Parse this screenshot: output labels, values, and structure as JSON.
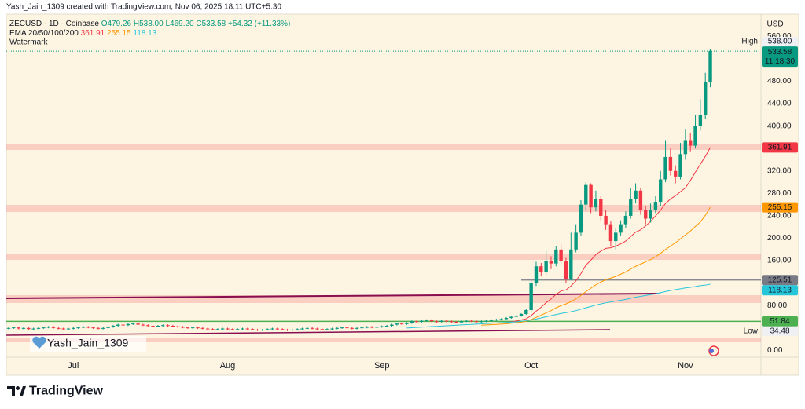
{
  "header": "Yash_Jain_1309 created with TradingView.com, Nov 06, 2025 18:11 UTC+5:30",
  "chart_data": {
    "type": "candlestick",
    "legend": {
      "symbol": "ZECUSD · 1D · Coinbase",
      "open": "O479.26",
      "high": "H538.00",
      "low": "L469.20",
      "close": "C533.58",
      "change": "+54.32 (+11.33%)",
      "indicator": "EMA 20/50/100/200",
      "watermark": "Watermark"
    },
    "categories": [
      null,
      null,
      null,
      null,
      null,
      null,
      null,
      null,
      null,
      null,
      null,
      null,
      null,
      "Jul",
      null,
      null,
      null,
      null,
      null,
      null,
      null,
      null,
      null,
      null,
      null,
      null,
      null,
      null,
      null,
      null,
      null,
      null,
      null,
      null,
      null,
      null,
      null,
      null,
      null,
      null,
      null,
      null,
      null,
      null,
      "Aug",
      null,
      null,
      null,
      null,
      null,
      null,
      null,
      null,
      null,
      null,
      null,
      null,
      null,
      null,
      null,
      null,
      null,
      null,
      null,
      null,
      null,
      null,
      null,
      null,
      null,
      null,
      null,
      null,
      null,
      null,
      "Sep",
      null,
      null,
      null,
      null,
      null,
      null,
      null,
      null,
      null,
      null,
      null,
      null,
      null,
      null,
      null,
      null,
      null,
      null,
      null,
      null,
      null,
      null,
      null,
      null,
      null,
      null,
      null,
      null,
      null,
      "Oct",
      null,
      null,
      null,
      null,
      null,
      null,
      null,
      null,
      null,
      null,
      null,
      null,
      null,
      null,
      null,
      null,
      null,
      null,
      null,
      null,
      null,
      null,
      null,
      null,
      null,
      null,
      null,
      null,
      null,
      null,
      "Nov",
      null,
      null,
      null,
      null,
      null
    ],
    "open": [
      39,
      40,
      41,
      39,
      40,
      38,
      39,
      40,
      41,
      42,
      40,
      39,
      38,
      39,
      40,
      41,
      42,
      41,
      40,
      39,
      40,
      42,
      44,
      46,
      45,
      47,
      48,
      46,
      45,
      44,
      43,
      44,
      45,
      44,
      43,
      42,
      41,
      40,
      41,
      40,
      39,
      38,
      37,
      38,
      39,
      38,
      37,
      38,
      39,
      38,
      37,
      36,
      37,
      38,
      39,
      38,
      37,
      36,
      37,
      38,
      39,
      40,
      39,
      38,
      37,
      38,
      39,
      40,
      41,
      40,
      39,
      40,
      41,
      42,
      41,
      42,
      43,
      44,
      46,
      48,
      47,
      49,
      52,
      51,
      53,
      54,
      52,
      51,
      53,
      52,
      51,
      50,
      52,
      53,
      52,
      51,
      52,
      53,
      54,
      55,
      56,
      58,
      60,
      62,
      65,
      72,
      120,
      150,
      140,
      160,
      155,
      180,
      160,
      128,
      180,
      210,
      260,
      295,
      255,
      270,
      240,
      225,
      195,
      210,
      225,
      240,
      270,
      285,
      250,
      235,
      250,
      265,
      305,
      345,
      320,
      310,
      350,
      375,
      365,
      400,
      420,
      479.26
    ],
    "high": [
      41.5,
      42.5,
      42.5,
      41.5,
      41.5,
      40.5,
      41.5,
      42.5,
      43.5,
      43.5,
      41.5,
      40.5,
      40.5,
      41.5,
      42.5,
      43.5,
      43.5,
      42.5,
      41.5,
      41.5,
      43.5,
      45.5,
      47.5,
      47.5,
      48.5,
      49.5,
      49.5,
      47.5,
      46.5,
      45.5,
      45.5,
      46.5,
      46.5,
      45.5,
      44.5,
      43.5,
      42.5,
      42.5,
      42.5,
      41.5,
      40.5,
      39.5,
      39.5,
      40.5,
      40.5,
      39.5,
      39.5,
      40.5,
      40.5,
      39.5,
      38.5,
      38.5,
      39.5,
      40.5,
      40.5,
      39.5,
      38.5,
      38.5,
      39.5,
      40.5,
      41.5,
      41.5,
      40.5,
      39.5,
      39.5,
      40.5,
      41.5,
      42.5,
      42.5,
      41.5,
      41.5,
      42.5,
      43.5,
      43.5,
      43.5,
      44.5,
      45.5,
      47.5,
      49.5,
      49.5,
      50.5,
      53.5,
      53.5,
      54.5,
      55.5,
      55.5,
      53.5,
      54.5,
      54.5,
      53.5,
      52.5,
      53.5,
      54.5,
      54.5,
      53.5,
      53.5,
      54.5,
      55.5,
      56.5,
      57.5,
      59.5,
      61.5,
      63.5,
      66.5,
      74,
      125,
      158,
      156,
      178,
      168,
      186,
      190,
      165,
      210,
      225,
      268,
      300,
      298,
      285,
      275,
      250,
      230,
      218,
      232,
      248,
      290,
      298,
      290,
      258,
      262,
      275,
      320,
      375,
      360,
      330,
      370,
      395,
      388,
      420,
      448,
      495,
      538
    ],
    "low": [
      37.5,
      38.5,
      37.5,
      37.5,
      36.5,
      36.5,
      37.5,
      38.5,
      39.5,
      38.5,
      37.5,
      36.5,
      36.5,
      37.5,
      38.5,
      39.5,
      39.5,
      38.5,
      37.5,
      37.5,
      38.5,
      40.5,
      42.5,
      43.5,
      43.5,
      45.5,
      44.5,
      43.5,
      42.5,
      41.5,
      41.5,
      42.5,
      42.5,
      41.5,
      40.5,
      39.5,
      38.5,
      38.5,
      38.5,
      37.5,
      36.5,
      35.5,
      35.5,
      36.5,
      36.5,
      35.5,
      35.5,
      36.5,
      36.5,
      35.5,
      34.48,
      34.5,
      35.5,
      36.5,
      36.5,
      35.5,
      34.5,
      34.5,
      35.5,
      36.5,
      37.5,
      37.5,
      36.5,
      35.5,
      35.5,
      36.5,
      37.5,
      38.5,
      38.5,
      37.5,
      37.5,
      38.5,
      39.5,
      39.5,
      39.5,
      40.5,
      41.5,
      42.5,
      44.5,
      45.5,
      45.5,
      47.5,
      49.5,
      49.5,
      51.5,
      50.5,
      49.5,
      49.5,
      50.5,
      49.5,
      48.5,
      48.5,
      50.5,
      50.5,
      49.5,
      49.5,
      50.5,
      51.5,
      52.5,
      53.5,
      54.5,
      56.5,
      58.5,
      60.5,
      63.5,
      70,
      115,
      132,
      135,
      145,
      150,
      152,
      120,
      125,
      175,
      205,
      250,
      245,
      248,
      232,
      215,
      185,
      180,
      205,
      218,
      235,
      262,
      242,
      225,
      228,
      245,
      258,
      300,
      312,
      298,
      305,
      340,
      355,
      360,
      392,
      412,
      469.2
    ],
    "close": [
      40,
      41,
      39,
      40,
      38,
      39,
      40,
      41,
      42,
      40,
      39,
      38,
      39,
      40,
      41,
      42,
      41,
      40,
      39,
      40,
      42,
      44,
      46,
      45,
      47,
      48,
      46,
      45,
      44,
      43,
      44,
      45,
      44,
      43,
      42,
      41,
      40,
      41,
      40,
      39,
      38,
      37,
      38,
      39,
      38,
      37,
      38,
      39,
      38,
      37,
      36,
      37,
      38,
      39,
      38,
      37,
      36,
      37,
      38,
      39,
      40,
      39,
      38,
      37,
      38,
      39,
      40,
      41,
      40,
      39,
      40,
      41,
      42,
      41,
      42,
      43,
      44,
      46,
      48,
      47,
      49,
      52,
      51,
      53,
      54,
      52,
      51,
      53,
      52,
      51,
      50,
      52,
      53,
      52,
      51,
      52,
      53,
      54,
      55,
      56,
      58,
      60,
      62,
      65,
      72,
      120,
      150,
      140,
      160,
      155,
      180,
      160,
      128,
      180,
      210,
      260,
      295,
      255,
      270,
      240,
      225,
      195,
      210,
      225,
      240,
      270,
      285,
      250,
      235,
      250,
      265,
      305,
      345,
      320,
      310,
      350,
      375,
      365,
      400,
      420,
      479.26,
      533.58
    ],
    "up_color": "#089981",
    "down_color": "#f23645",
    "series": [
      {
        "color": "#f23645",
        "values": [
          null,
          null,
          null,
          null,
          null,
          null,
          null,
          null,
          null,
          null,
          null,
          null,
          null,
          null,
          null,
          null,
          null,
          null,
          null,
          null,
          null,
          null,
          null,
          null,
          null,
          null,
          null,
          null,
          null,
          null,
          null,
          null,
          null,
          null,
          null,
          null,
          null,
          null,
          null,
          null,
          null,
          null,
          null,
          null,
          null,
          null,
          null,
          null,
          null,
          null,
          null,
          null,
          null,
          null,
          null,
          null,
          null,
          null,
          null,
          null,
          null,
          null,
          null,
          null,
          null,
          null,
          null,
          null,
          null,
          null,
          null,
          null,
          null,
          null,
          null,
          null,
          null,
          null,
          null,
          null,
          null,
          null,
          null,
          null,
          null,
          null,
          null,
          null,
          null,
          null,
          null,
          null,
          null,
          null,
          null,
          null,
          null,
          null,
          null,
          null,
          50,
          51,
          52.5,
          54.5,
          56.5,
          62,
          70,
          77,
          85,
          92,
          100,
          106,
          108,
          115,
          124,
          137,
          152,
          161,
          171,
          177,
          182,
          183,
          186,
          190,
          195,
          203,
          211,
          215,
          222,
          230,
          240,
          250,
          262,
          270,
          276,
          283,
          290,
          303,
          318,
          332,
          346,
          361.91
        ]
      },
      {
        "color": "#ff9800",
        "values": [
          null,
          null,
          null,
          null,
          null,
          null,
          null,
          null,
          null,
          null,
          null,
          null,
          null,
          null,
          null,
          null,
          null,
          null,
          null,
          null,
          null,
          null,
          null,
          null,
          null,
          null,
          null,
          null,
          null,
          null,
          null,
          null,
          null,
          null,
          null,
          null,
          null,
          null,
          null,
          null,
          null,
          null,
          null,
          null,
          null,
          null,
          null,
          null,
          null,
          null,
          null,
          null,
          null,
          null,
          null,
          null,
          null,
          null,
          null,
          null,
          null,
          null,
          null,
          null,
          null,
          null,
          null,
          null,
          null,
          null,
          null,
          null,
          null,
          null,
          null,
          null,
          null,
          null,
          null,
          null,
          null,
          null,
          null,
          null,
          null,
          null,
          null,
          null,
          null,
          null,
          null,
          null,
          null,
          null,
          null,
          45,
          45.5,
          46,
          46.5,
          47,
          47.5,
          48.5,
          49.5,
          50.5,
          52,
          55,
          59,
          63,
          67,
          71,
          76,
          80,
          83,
          87,
          92,
          98,
          105,
          111,
          117,
          122,
          126,
          129,
          132,
          136,
          140,
          145,
          150,
          154,
          158,
          162,
          167,
          173,
          180,
          186,
          192,
          199,
          206,
          213,
          221,
          229,
          241,
          255.15
        ]
      },
      {
        "color": "#26c6da",
        "values": [
          null,
          null,
          null,
          null,
          null,
          null,
          null,
          null,
          null,
          null,
          null,
          null,
          null,
          null,
          null,
          null,
          null,
          null,
          null,
          null,
          null,
          null,
          null,
          null,
          null,
          null,
          null,
          null,
          null,
          null,
          null,
          null,
          null,
          null,
          null,
          null,
          null,
          null,
          null,
          null,
          null,
          null,
          null,
          null,
          null,
          null,
          null,
          null,
          null,
          null,
          null,
          null,
          null,
          null,
          null,
          null,
          null,
          null,
          null,
          null,
          null,
          null,
          null,
          null,
          null,
          null,
          null,
          null,
          null,
          null,
          null,
          null,
          null,
          null,
          null,
          null,
          null,
          null,
          null,
          null,
          40,
          40.5,
          41,
          41.5,
          42,
          42.5,
          43,
          43.5,
          44,
          44.5,
          45,
          45.5,
          46,
          46.5,
          47,
          47.5,
          48,
          48.5,
          49,
          49.5,
          50,
          50.5,
          51,
          52,
          53,
          54.5,
          56,
          58,
          60,
          62,
          64,
          66,
          67.5,
          69,
          71,
          73.5,
          76,
          78.5,
          81,
          83,
          85,
          86.5,
          88,
          89.5,
          91,
          93,
          95,
          96.5,
          98,
          99.5,
          101,
          103,
          105,
          107,
          108.5,
          110,
          111.5,
          112.5,
          114,
          115.5,
          116.5,
          118.13
        ]
      }
    ],
    "ylim": [
      -12,
      594
    ],
    "yticks": [
      {
        "value": 560,
        "label": "560.00"
      },
      {
        "value": 480,
        "label": "480.00"
      },
      {
        "value": 440,
        "label": "440.00"
      },
      {
        "value": 400,
        "label": "400.00"
      },
      {
        "value": 320,
        "label": "320.00"
      },
      {
        "value": 280,
        "label": "280.00"
      },
      {
        "value": 240,
        "label": "240.00"
      },
      {
        "value": 200,
        "label": "200.00"
      },
      {
        "value": 160,
        "label": "160.00"
      },
      {
        "value": 80,
        "label": "80.00"
      },
      {
        "value": 0,
        "label": "0.00"
      }
    ],
    "grid": false,
    "currency": "USD",
    "high_marker": {
      "label": "High",
      "price": {
        "value": 538,
        "label": "538.00"
      }
    },
    "low_marker": {
      "label": "Low",
      "price": 34.48
    },
    "countdown": "11:18:30",
    "price_lines": [
      {
        "value": 125.51,
        "color": "#787b86"
      },
      {
        "value": 51.84,
        "color": "#4caf50"
      }
    ],
    "watermark_user": "Yash_Jain_1309"
  },
  "footer": {
    "brand": "TradingView"
  }
}
